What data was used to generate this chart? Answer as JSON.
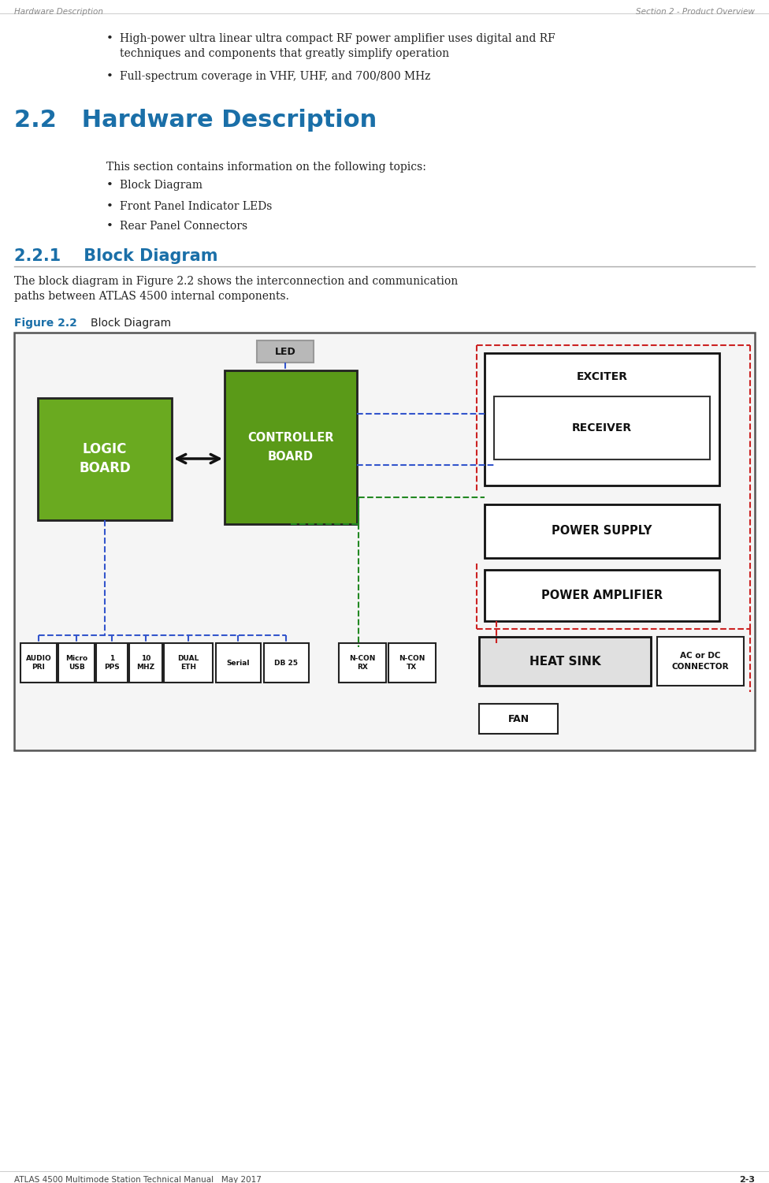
{
  "bg_color": "#ffffff",
  "header_left": "Hardware Description",
  "header_right": "Section 2 - Product Overview",
  "footer_left": "ATLAS 4500 Multimode Station Technical Manual   May 2017",
  "footer_right": "2-3",
  "bullet1_line1": "High-power ultra linear ultra compact RF power amplifier uses digital and RF",
  "bullet1_line2": "techniques and components that greatly simplify operation",
  "bullet2": "Full-spectrum coverage in VHF, UHF, and 700/800 MHz",
  "section_title": "2.2   Hardware Description",
  "section_body": "This section contains information on the following topics:",
  "section_bullets": [
    "Block Diagram",
    "Front Panel Indicator LEDs",
    "Rear Panel Connectors"
  ],
  "subsection_title": "2.2.1    Block Diagram",
  "subsection_body_line1": "The block diagram in Figure 2.2 shows the interconnection and communication",
  "subsection_body_line2": "paths between ATLAS 4500 internal components.",
  "figure_label_blue": "Figure 2.2",
  "figure_label_black": "     Block Diagram",
  "green_dark": "#4a7a10",
  "green_light": "#6aaa20",
  "green_controller": "#5a9a18",
  "gray_led": "#b8b8b8",
  "gray_led_dark": "#999999",
  "white_fill": "#ffffff",
  "diagram_bg": "#f5f5f5",
  "blue_dashed": "#3355cc",
  "red_dashed": "#cc2222",
  "green_dashed": "#228822",
  "box_border": "#111111",
  "header_color": "#888888",
  "section22_color": "#1a6fa8",
  "heat_sink_bg": "#e0e0e0"
}
